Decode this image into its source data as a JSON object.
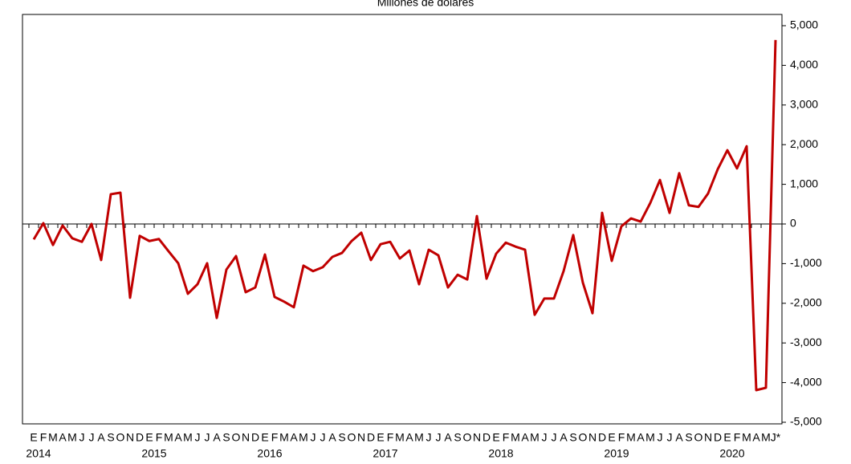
{
  "chart_data": {
    "type": "line",
    "title": "Millones de dólares",
    "categories": [
      "E",
      "F",
      "M",
      "A",
      "M",
      "J",
      "J",
      "A",
      "S",
      "O",
      "N",
      "D",
      "E",
      "F",
      "M",
      "A",
      "M",
      "J",
      "J",
      "A",
      "S",
      "O",
      "N",
      "D",
      "E",
      "F",
      "M",
      "A",
      "M",
      "J",
      "J",
      "A",
      "S",
      "O",
      "N",
      "D",
      "E",
      "F",
      "M",
      "A",
      "M",
      "J",
      "J",
      "A",
      "S",
      "O",
      "N",
      "D",
      "E",
      "F",
      "M",
      "A",
      "M",
      "J",
      "J",
      "A",
      "S",
      "O",
      "N",
      "D",
      "E",
      "F",
      "M",
      "A",
      "M",
      "J",
      "J",
      "A",
      "S",
      "O",
      "N",
      "D",
      "E",
      "F",
      "M",
      "A",
      "M",
      "J*"
    ],
    "years": [
      "2014",
      "2015",
      "2016",
      "2017",
      "2018",
      "2019",
      "2020"
    ],
    "series": [
      {
        "name": "Millones de dólares",
        "color": "#c00000",
        "values": [
          -390,
          20,
          -530,
          -40,
          -360,
          -450,
          0,
          -910,
          750,
          790,
          -1860,
          -300,
          -430,
          -380,
          -690,
          -990,
          -1760,
          -1520,
          -990,
          -2370,
          -1150,
          -810,
          -1720,
          -1600,
          -770,
          -1840,
          -1960,
          -2100,
          -1050,
          -1190,
          -1090,
          -830,
          -730,
          -430,
          -220,
          -910,
          -510,
          -450,
          -870,
          -670,
          -1520,
          -650,
          -790,
          -1600,
          -1280,
          -1400,
          200,
          -1380,
          -750,
          -470,
          -570,
          -650,
          -2290,
          -1880,
          -1880,
          -1190,
          -280,
          -1480,
          -2250,
          280,
          -930,
          -60,
          140,
          60,
          530,
          1110,
          280,
          1280,
          470,
          430,
          770,
          1380,
          1860,
          1400,
          1960,
          -4190,
          -4130,
          4640
        ]
      }
    ],
    "ylim": [
      -5000,
      5000
    ],
    "yticks": [
      {
        "value": -5000,
        "label": "-5,000"
      },
      {
        "value": -4000,
        "label": "-4,000"
      },
      {
        "value": -3000,
        "label": "-3,000"
      },
      {
        "value": -2000,
        "label": "-2,000"
      },
      {
        "value": -1000,
        "label": "-1,000"
      },
      0,
      {
        "value": 1000,
        "label": "1,000"
      },
      {
        "value": 2000,
        "label": "2,000"
      },
      {
        "value": 3000,
        "label": "3,000"
      },
      {
        "value": 4000,
        "label": "4,000"
      },
      {
        "value": 5000,
        "label": "5,000"
      }
    ]
  }
}
